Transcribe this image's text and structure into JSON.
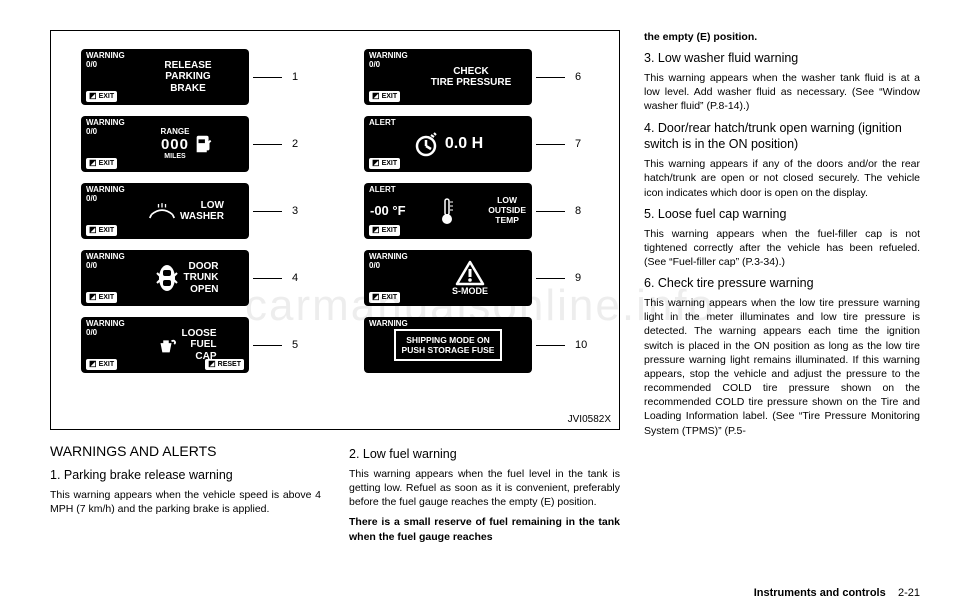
{
  "figure": {
    "id_label": "JVI0582X",
    "left_panels": [
      {
        "n": "1",
        "hdr1": "WARNING",
        "hdr2": "0/0",
        "content": "RELEASE\nPARKING\nBRAKE",
        "exit": "EXIT"
      },
      {
        "n": "2",
        "hdr1": "WARNING",
        "hdr2": "0/0",
        "content": "RANGE\n000\nMILES",
        "exit": "EXIT",
        "icon": "fuel"
      },
      {
        "n": "3",
        "hdr1": "WARNING",
        "hdr2": "0/0",
        "content": "LOW\nWASHER",
        "exit": "EXIT",
        "icon": "washer"
      },
      {
        "n": "4",
        "hdr1": "WARNING",
        "hdr2": "0/0",
        "content": "DOOR\nTRUNK\nOPEN",
        "exit": "EXIT",
        "icon": "car"
      },
      {
        "n": "5",
        "hdr1": "WARNING",
        "hdr2": "0/0",
        "content": "LOOSE\nFUEL\nCAP",
        "exit": "EXIT",
        "icon": "cap",
        "reset": "RESET"
      }
    ],
    "right_panels": [
      {
        "n": "6",
        "hdr1": "WARNING",
        "hdr2": "0/0",
        "content": "CHECK\nTIRE PRESSURE",
        "exit": "EXIT"
      },
      {
        "n": "7",
        "hdr1": "ALERT",
        "hdr2": "",
        "content": "0.0 H",
        "exit": "EXIT",
        "icon": "clock"
      },
      {
        "n": "8",
        "hdr1": "ALERT",
        "hdr2": "",
        "content_left": "-00 °F",
        "content": "LOW\nOUTSIDE\nTEMP",
        "exit": "EXIT",
        "icon": "temp"
      },
      {
        "n": "9",
        "hdr1": "WARNING",
        "hdr2": "0/0",
        "content": "S-MODE",
        "exit": "EXIT",
        "icon": "warn"
      },
      {
        "n": "10",
        "hdr1": "WARNING",
        "hdr2": "",
        "content": "SHIPPING MODE ON\nPUSH STORAGE FUSE",
        "box": true
      }
    ]
  },
  "below": {
    "left": {
      "heading": "WARNINGS AND ALERTS",
      "sub": "1. Parking brake release warning",
      "p1": "This warning appears when the vehicle speed is above 4 MPH (7 km/h) and the parking brake is applied."
    },
    "right": {
      "sub": "2. Low fuel warning",
      "p1": "This warning appears when the fuel level in the tank is getting low. Refuel as soon as it is convenient, preferably before the fuel gauge reaches the empty (E) position.",
      "p2": "There is a small reserve of fuel remaining in the tank when the fuel gauge reaches"
    }
  },
  "rightcol": {
    "cont": "the empty (E) position.",
    "s3h": "3. Low washer fluid warning",
    "s3p": "This warning appears when the washer tank fluid is at a low level. Add washer fluid as necessary. (See “Window washer fluid” (P.8-14).)",
    "s4h": "4. Door/rear hatch/trunk open warning (ignition switch is in the ON position)",
    "s4p": "This warning appears if any of the doors and/or the rear hatch/trunk are open or not closed securely. The vehicle icon indicates which door is open on the display.",
    "s5h": "5. Loose fuel cap warning",
    "s5p": "This warning appears when the fuel-filler cap is not tightened correctly after the vehicle has been refueled. (See “Fuel-filler cap” (P.3-34).)",
    "s6h": "6. Check tire pressure warning",
    "s6p": "This warning appears when the low tire pressure warning light in the meter illuminates and low tire pressure is detected. The warning appears each time the ignition switch is placed in the ON position as long as the low tire pressure warning light remains illuminated. If this warning appears, stop the vehicle and adjust the pressure to the recommended COLD tire pressure shown on the recommended COLD tire pressure shown on the Tire and Loading Information label. (See “Tire Pressure Monitoring System (TPMS)” (P.5-"
  },
  "footer": {
    "section": "Instruments and controls",
    "page": "2-21"
  },
  "watermark": "carmanualsonline.info"
}
